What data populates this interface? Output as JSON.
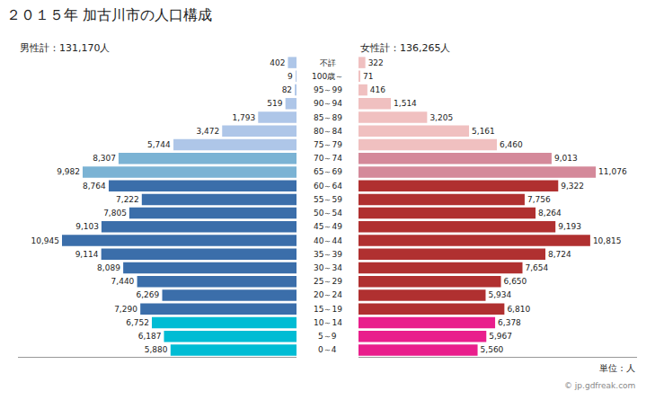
{
  "chart_data": {
    "type": "bar",
    "orientation": "horizontal",
    "title": "２０１５年 加古川市の人口構成",
    "annotations": [
      "男性計：131,170人",
      "女性計：136,265人",
      "単位：人",
      "© jp.gdfreak.com"
    ],
    "categories": [
      "0～4",
      "5～9",
      "10～14",
      "15～19",
      "20～24",
      "25～29",
      "30～34",
      "35～39",
      "40～44",
      "45～49",
      "50～54",
      "55～59",
      "60～64",
      "65～69",
      "70～74",
      "75～79",
      "80～84",
      "85～89",
      "90～94",
      "95～99",
      "100歳～",
      "不詳"
    ],
    "series": [
      {
        "values": [
          5880,
          6187,
          6752,
          7290,
          6269,
          7440,
          8089,
          9114,
          10945,
          9103,
          7805,
          7222,
          8764,
          9982,
          8307,
          5744,
          3472,
          1793,
          519,
          82,
          9,
          402
        ],
        "value_labels": [
          "5,880",
          "6,187",
          "6,752",
          "7,290",
          "6,269",
          "7,440",
          "8,089",
          "9,114",
          "10,945",
          "9,103",
          "7,805",
          "7,222",
          "8,764",
          "9,982",
          "8,307",
          "5,744",
          "3,472",
          "1,793",
          "519",
          "82",
          "9",
          "402"
        ],
        "colors": [
          "#00bcd4",
          "#00bcd4",
          "#00bcd4",
          "#3b6eaa",
          "#3b6eaa",
          "#3b6eaa",
          "#3b6eaa",
          "#3b6eaa",
          "#3b6eaa",
          "#3b6eaa",
          "#3b6eaa",
          "#3b6eaa",
          "#3b6eaa",
          "#7bb3d4",
          "#7bb3d4",
          "#aec6e8",
          "#aec6e8",
          "#aec6e8",
          "#aec6e8",
          "#aec6e8",
          "#aec6e8",
          "#aec6e8"
        ]
      },
      {
        "values": [
          5560,
          5967,
          6378,
          6810,
          5934,
          6650,
          7654,
          8724,
          10815,
          9193,
          8264,
          7756,
          9322,
          11076,
          9013,
          6460,
          5161,
          3205,
          1514,
          416,
          71,
          322
        ],
        "value_labels": [
          "5,560",
          "5,967",
          "6,378",
          "6,810",
          "5,934",
          "6,650",
          "7,654",
          "8,724",
          "10,815",
          "9,193",
          "8,264",
          "7,756",
          "9,322",
          "11,076",
          "9,013",
          "6,460",
          "5,161",
          "3,205",
          "1,514",
          "416",
          "71",
          "322"
        ],
        "colors": [
          "#e91e8c",
          "#e91e8c",
          "#e91e8c",
          "#b03030",
          "#b03030",
          "#b03030",
          "#b03030",
          "#b03030",
          "#b03030",
          "#b03030",
          "#b03030",
          "#b03030",
          "#b03030",
          "#d4899a",
          "#d4899a",
          "#f0c0c0",
          "#f0c0c0",
          "#f0c0c0",
          "#f0c0c0",
          "#f0c0c0",
          "#f0c0c0",
          "#f0c0c0"
        ]
      }
    ],
    "xlim": [
      0,
      13000
    ],
    "xticks": [],
    "tick_labels": false,
    "data_labels": true,
    "grid": false
  }
}
